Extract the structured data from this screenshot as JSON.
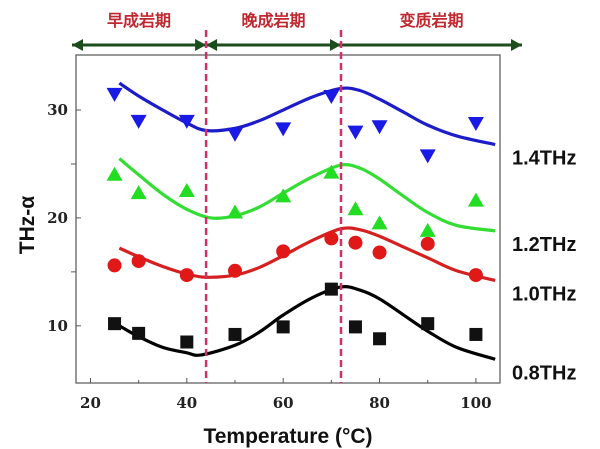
{
  "chart_data": {
    "type": "scatter",
    "xlabel": "Temperature (°C)",
    "xlabel_main": "Temperature (",
    "xlabel_sup": "o",
    "xlabel_end": "C)",
    "ylabel": "THz-α",
    "xlim": [
      17,
      105
    ],
    "ylim": [
      4.7,
      35.1
    ],
    "xticks": [
      20,
      40,
      60,
      80,
      100
    ],
    "yticks": [
      10,
      20,
      30
    ],
    "grid": false,
    "stages": {
      "dividers": [
        44,
        72
      ],
      "labels": [
        "早成岩期",
        "晚成岩期",
        "变质岩期"
      ],
      "arrow_color": "#1d4d1d",
      "label_color": "#c0282f",
      "divider_color": "#d0306a"
    },
    "series": [
      {
        "name": "1.4THz",
        "marker": "triangle-down",
        "color": "#1a1ae6",
        "x": [
          25,
          30,
          40,
          50,
          60,
          70,
          75,
          80,
          90,
          100
        ],
        "y": [
          31.5,
          29,
          29,
          27.8,
          28.3,
          31.3,
          28,
          28.5,
          25.8,
          28.8
        ],
        "fit_x": [
          26,
          30,
          35,
          40,
          44,
          50,
          55,
          60,
          66,
          72,
          76,
          80,
          85,
          90,
          96,
          104
        ],
        "fit_y": [
          32.5,
          31.3,
          30,
          28.8,
          28.1,
          28.3,
          29,
          30,
          31.2,
          32,
          31.8,
          31,
          29.8,
          28.6,
          27.6,
          26.8
        ],
        "fit_color": "#1c1cc8"
      },
      {
        "name": "1.2THz",
        "marker": "triangle-up",
        "color": "#22dd22",
        "x": [
          25,
          30,
          40,
          50,
          60,
          70,
          75,
          80,
          90,
          100
        ],
        "y": [
          24,
          22.3,
          22.5,
          20.5,
          22,
          24.2,
          20.8,
          19.5,
          18.8,
          21.6
        ],
        "fit_x": [
          26,
          30,
          35,
          40,
          45,
          50,
          55,
          60,
          66,
          72,
          76,
          80,
          85,
          90,
          96,
          104
        ],
        "fit_y": [
          25.5,
          24,
          22.2,
          20.8,
          20,
          20.2,
          21,
          22.3,
          23.8,
          24.9,
          24.6,
          23.6,
          22,
          20.5,
          19.3,
          18.8
        ],
        "fit_color": "#33dd33"
      },
      {
        "name": "1.0THz",
        "marker": "circle",
        "color": "#e01818",
        "x": [
          25,
          30,
          40,
          50,
          60,
          70,
          75,
          80,
          90,
          100
        ],
        "y": [
          15.6,
          16,
          14.7,
          15.1,
          16.9,
          18.1,
          17.7,
          16.8,
          17.6,
          14.7
        ],
        "fit_x": [
          26,
          30,
          35,
          40,
          44,
          50,
          55,
          60,
          66,
          72,
          76,
          80,
          85,
          90,
          96,
          104
        ],
        "fit_y": [
          17.2,
          16.4,
          15.5,
          14.8,
          14.5,
          14.7,
          15.4,
          16.5,
          17.9,
          19,
          18.9,
          18.3,
          17.3,
          16.3,
          15.1,
          14.2
        ],
        "fit_color": "#d42020"
      },
      {
        "name": "0.8THz",
        "marker": "square",
        "color": "#111111",
        "x": [
          25,
          30,
          40,
          50,
          60,
          70,
          75,
          80,
          90,
          100
        ],
        "y": [
          10.2,
          9.3,
          8.5,
          9.2,
          9.9,
          13.4,
          9.9,
          8.8,
          10.2,
          9.2
        ],
        "fit_x": [
          26,
          30,
          35,
          40,
          43,
          50,
          55,
          60,
          66,
          72,
          76,
          80,
          85,
          90,
          96,
          104
        ],
        "fit_y": [
          10,
          9,
          8,
          7.5,
          7.3,
          8.2,
          9.4,
          11,
          12.6,
          13.6,
          13.3,
          12.5,
          11,
          9.5,
          8,
          6.9
        ],
        "fit_color": "#000000"
      }
    ]
  }
}
